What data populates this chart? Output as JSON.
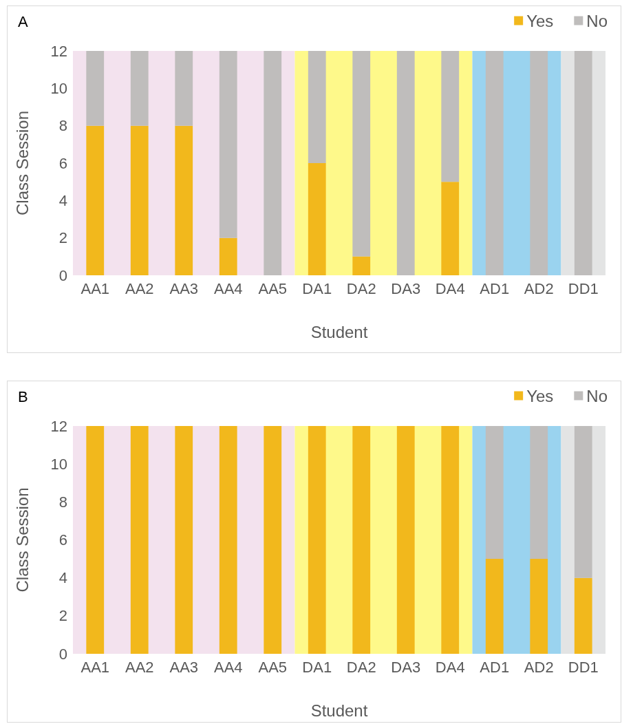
{
  "chart_data": [
    {
      "type": "bar",
      "title": "A",
      "xlabel": "Student",
      "ylabel": "Class Session",
      "categories": [
        "AA1",
        "AA2",
        "AA3",
        "AA4",
        "AA5",
        "DA1",
        "DA2",
        "DA3",
        "DA4",
        "AD1",
        "AD2",
        "DD1"
      ],
      "stacked": true,
      "ylim": [
        0,
        12
      ],
      "yticks": [
        0,
        2,
        4,
        6,
        8,
        10,
        12
      ],
      "grid": false,
      "legend": "top right",
      "series": [
        {
          "name": "Yes",
          "color": "#f2b81c",
          "values": [
            8,
            8,
            8,
            2,
            0,
            6,
            1,
            0,
            5,
            0,
            0,
            0
          ]
        },
        {
          "name": "No",
          "color": "#bfbdbc",
          "values": [
            4,
            4,
            4,
            10,
            12,
            6,
            11,
            12,
            7,
            12,
            12,
            12
          ]
        }
      ],
      "bands": [
        {
          "axis": "x",
          "from": "AA1",
          "to": "AA5",
          "color": "#f3e2ee"
        },
        {
          "axis": "x",
          "from": "DA1",
          "to": "DA4",
          "color": "#fef98a"
        },
        {
          "axis": "x",
          "from": "AD1",
          "to": "AD2",
          "color": "#9ad3ef"
        },
        {
          "axis": "x",
          "from": "DD1",
          "to": "DD1",
          "color": "#e3e4e4"
        }
      ]
    },
    {
      "type": "bar",
      "title": "B",
      "xlabel": "Student",
      "ylabel": "Class Session",
      "categories": [
        "AA1",
        "AA2",
        "AA3",
        "AA4",
        "AA5",
        "DA1",
        "DA2",
        "DA3",
        "DA4",
        "AD1",
        "AD2",
        "DD1"
      ],
      "stacked": true,
      "ylim": [
        0,
        12
      ],
      "yticks": [
        0,
        2,
        4,
        6,
        8,
        10,
        12
      ],
      "grid": false,
      "legend": "top right",
      "series": [
        {
          "name": "Yes",
          "color": "#f2b81c",
          "values": [
            12,
            12,
            12,
            12,
            12,
            12,
            12,
            12,
            12,
            5,
            5,
            4
          ]
        },
        {
          "name": "No",
          "color": "#bfbdbc",
          "values": [
            0,
            0,
            0,
            0,
            0,
            0,
            0,
            0,
            0,
            7,
            7,
            8
          ]
        }
      ],
      "bands": [
        {
          "axis": "x",
          "from": "AA1",
          "to": "AA5",
          "color": "#f3e2ee"
        },
        {
          "axis": "x",
          "from": "DA1",
          "to": "DA4",
          "color": "#fef98a"
        },
        {
          "axis": "x",
          "from": "AD1",
          "to": "AD2",
          "color": "#9ad3ef"
        },
        {
          "axis": "x",
          "from": "DD1",
          "to": "DD1",
          "color": "#e3e4e4"
        }
      ]
    }
  ]
}
